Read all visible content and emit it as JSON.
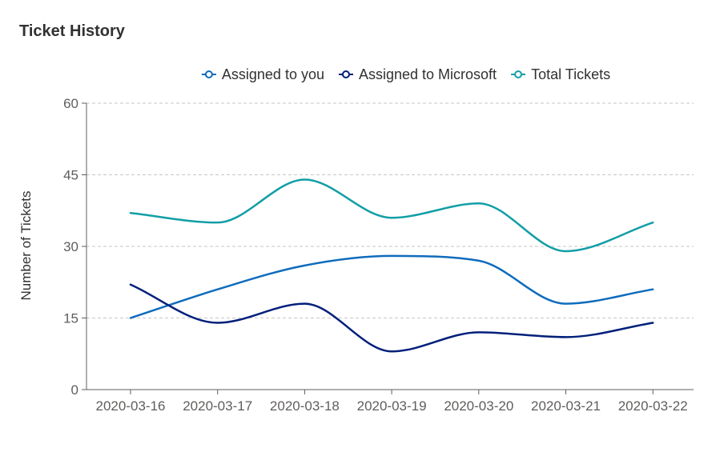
{
  "card": {
    "title": "Ticket History"
  },
  "colors": {
    "axis": "#605e5c",
    "grid": "#c8c6c4",
    "text": "#323130"
  },
  "chart_data": {
    "type": "line",
    "title": "Ticket History",
    "xlabel": "",
    "ylabel": "Number of Tickets",
    "categories": [
      "2020-03-16",
      "2020-03-17",
      "2020-03-18",
      "2020-03-19",
      "2020-03-20",
      "2020-03-21",
      "2020-03-22"
    ],
    "ylim": [
      0,
      60
    ],
    "yticks": [
      0,
      15,
      30,
      45,
      60
    ],
    "grid": true,
    "legend": "top-center",
    "smooth": true,
    "series": [
      {
        "name": "Assigned to you",
        "color": "#0f6cbd",
        "values": [
          15,
          21,
          26,
          28,
          27,
          18,
          21
        ]
      },
      {
        "name": "Assigned to Microsoft",
        "color": "#001f7a",
        "values": [
          22,
          14,
          18,
          8,
          12,
          11,
          14
        ]
      },
      {
        "name": "Total Tickets",
        "color": "#129ea6",
        "values": [
          37,
          35,
          44,
          36,
          39,
          29,
          35
        ]
      }
    ]
  }
}
